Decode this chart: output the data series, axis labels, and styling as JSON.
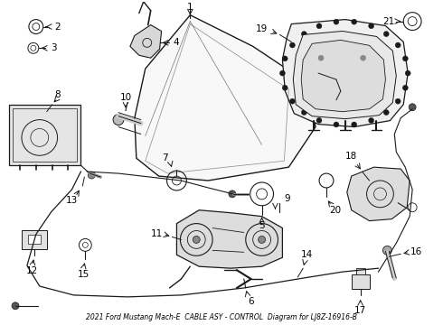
{
  "title": "2021 Ford Mustang Mach-E  CABLE ASY - CONTROL  Diagram for LJ8Z-16916-B",
  "bg_color": "#ffffff",
  "line_color": "#1a1a1a",
  "text_color": "#000000",
  "fig_width": 4.9,
  "fig_height": 3.6,
  "dpi": 100
}
